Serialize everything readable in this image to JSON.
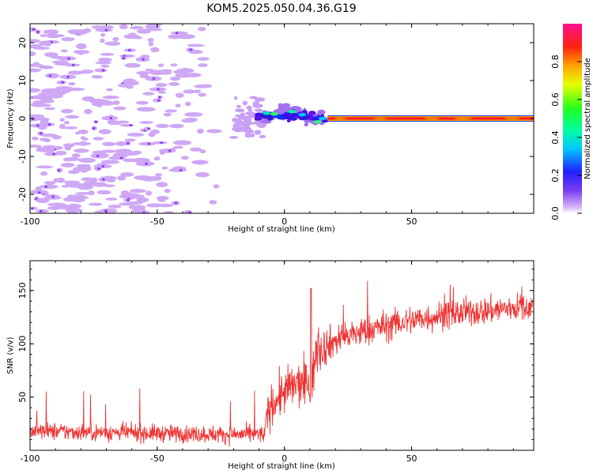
{
  "figure_title": "KOM5.2025.050.04.36.G19",
  "chart_data": [
    {
      "type": "heatmap",
      "xlabel": "Height of straight line (km)",
      "ylabel": "Frequency (Hz)",
      "xlim": [
        -100,
        98
      ],
      "ylim": [
        -25,
        25
      ],
      "x_ticks": [
        "-100",
        "-50",
        "0",
        "50"
      ],
      "x_tick_values": [
        -100,
        -50,
        0,
        50
      ],
      "y_ticks": [
        "-20",
        "-10",
        "0",
        "10",
        "20"
      ],
      "y_tick_values": [
        -20,
        -10,
        0,
        10,
        20
      ],
      "colorbar": {
        "label": "Normalized spectral amplitude",
        "range": [
          0,
          1
        ],
        "ticks": [
          "0.0",
          "0.2",
          "0.4",
          "0.6",
          "0.8"
        ],
        "tick_values": [
          0,
          0.2,
          0.4,
          0.6,
          0.8
        ],
        "colormap": "rainbow (white/lavender to magenta)"
      },
      "features": [
        {
          "description": "scattered weak noise blobs",
          "x_range": [
            -100,
            -20
          ],
          "y_range": [
            -25,
            25
          ],
          "amplitude": 0.05
        },
        {
          "description": "onset cluster near 0 Hz",
          "x_range": [
            -20,
            15
          ],
          "y_range": [
            -3,
            3
          ],
          "amplitude": 0.3
        },
        {
          "description": "strong steady carrier line at 0 Hz",
          "x_range": [
            17,
            98
          ],
          "y_value": 0,
          "amplitude": 0.95
        }
      ]
    },
    {
      "type": "line",
      "xlabel": "Height of straight line (km)",
      "ylabel": "SNR (v/v)",
      "xlim": [
        -100,
        98
      ],
      "ylim": [
        0,
        178
      ],
      "x_ticks": [
        "-100",
        "-50",
        "0",
        "50"
      ],
      "x_tick_values": [
        -100,
        -50,
        0,
        50
      ],
      "y_ticks": [
        "50",
        "100",
        "150"
      ],
      "y_tick_values": [
        50,
        100,
        150
      ],
      "color": "#ee3333",
      "series_trend": [
        {
          "x": -100,
          "y": 18
        },
        {
          "x": -75,
          "y": 17
        },
        {
          "x": -50,
          "y": 16
        },
        {
          "x": -25,
          "y": 15
        },
        {
          "x": -8,
          "y": 15
        },
        {
          "x": -6,
          "y": 40
        },
        {
          "x": 0,
          "y": 55
        },
        {
          "x": 5,
          "y": 62
        },
        {
          "x": 11,
          "y": 60
        },
        {
          "x": 12,
          "y": 92
        },
        {
          "x": 20,
          "y": 103
        },
        {
          "x": 30,
          "y": 111
        },
        {
          "x": 40,
          "y": 117
        },
        {
          "x": 50,
          "y": 122
        },
        {
          "x": 60,
          "y": 126
        },
        {
          "x": 70,
          "y": 129
        },
        {
          "x": 80,
          "y": 131
        },
        {
          "x": 90,
          "y": 134
        },
        {
          "x": 98,
          "y": 135
        }
      ],
      "noise_amplitude": [
        {
          "x": -100,
          "y": 9
        },
        {
          "x": -8,
          "y": 9
        },
        {
          "x": -6,
          "y": 22
        },
        {
          "x": 11,
          "y": 26
        },
        {
          "x": 20,
          "y": 16
        },
        {
          "x": 98,
          "y": 14
        }
      ]
    }
  ]
}
